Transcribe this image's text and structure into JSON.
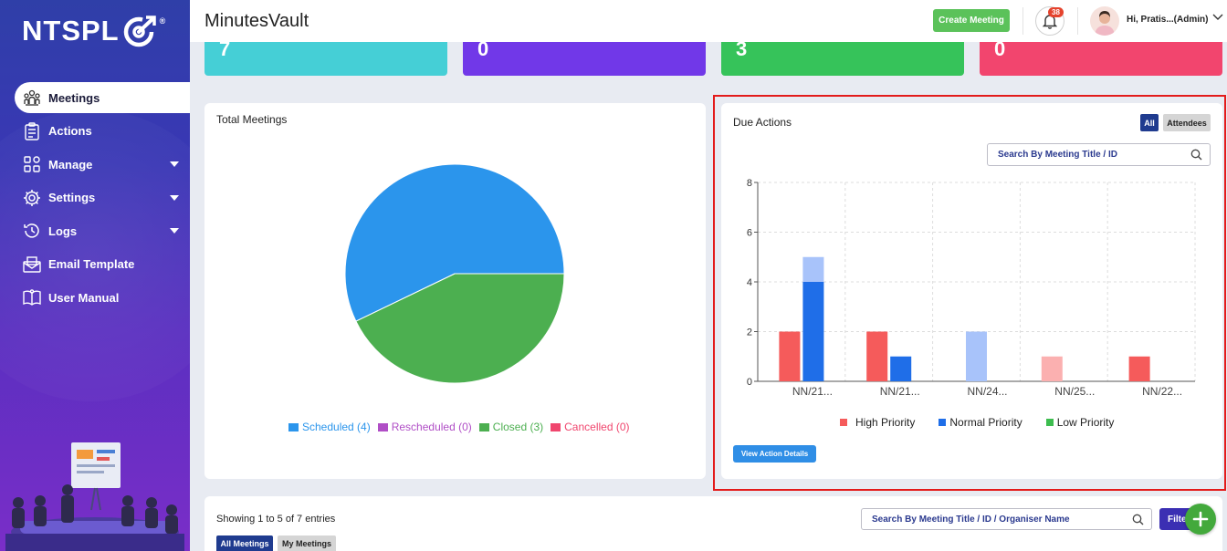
{
  "brand": {
    "logo_text": "NTSPL",
    "logo_mark": "®"
  },
  "sidebar": {
    "items": [
      {
        "label": "Meetings",
        "icon": "meetings-icon",
        "active": true
      },
      {
        "label": "Actions",
        "icon": "clipboard-icon"
      },
      {
        "label": "Manage",
        "icon": "grid-icon",
        "has_caret": true
      },
      {
        "label": "Settings",
        "icon": "gear-icon",
        "has_caret": true
      },
      {
        "label": "Logs",
        "icon": "history-icon",
        "has_caret": true
      },
      {
        "label": "Email Template",
        "icon": "envelope-icon"
      },
      {
        "label": "User Manual",
        "icon": "book-icon"
      }
    ]
  },
  "header": {
    "title": "MinutesVault",
    "create_button": "Create Meeting",
    "notification_count": "38",
    "user": "Hi, Pratis...(Admin)"
  },
  "stats": [
    {
      "value": "7",
      "color": "#45cfd6"
    },
    {
      "value": "0",
      "color": "#7138e8"
    },
    {
      "value": "3",
      "color": "#36c35a"
    },
    {
      "value": "0",
      "color": "#f2456e"
    }
  ],
  "total_meetings": {
    "title": "Total Meetings",
    "legend": [
      {
        "label": "Scheduled (4)",
        "color": "#2b95ec"
      },
      {
        "label": "Rescheduled (0)",
        "color": "#b04ec6"
      },
      {
        "label": "Closed (3)",
        "color": "#4caf50"
      },
      {
        "label": "Cancelled (0)",
        "color": "#f0466e"
      }
    ]
  },
  "due_actions": {
    "title": "Due Actions",
    "toggle_all": "All",
    "toggle_attendees": "Attendees",
    "search_placeholder": "Search By Meeting Title / ID",
    "view_button": "View Action Details",
    "legend": [
      {
        "label": "High Priority",
        "color": "#f55b5b"
      },
      {
        "label": "Normal Priority",
        "color": "#1f6ee8"
      },
      {
        "label": "Low Priority",
        "color": "#3dbd4f"
      }
    ]
  },
  "table_section": {
    "showing": "Showing 1 to 5 of 7 entries",
    "tab_all": "All Meetings",
    "tab_my": "My Meetings",
    "search_placeholder": "Search By Meeting Title / ID / Organiser Name",
    "filter_label": "Filter"
  },
  "chart_data": [
    {
      "type": "pie",
      "title": "Total Meetings",
      "categories": [
        "Scheduled",
        "Rescheduled",
        "Closed",
        "Cancelled"
      ],
      "values": [
        4,
        0,
        3,
        0
      ],
      "colors": [
        "#2b95ec",
        "#b04ec6",
        "#4caf50",
        "#f0466e"
      ],
      "legend_placement": "bottom"
    },
    {
      "type": "bar",
      "title": "Due Actions",
      "categories": [
        "NN/21...",
        "NN/21...",
        "NN/24...",
        "NN/25...",
        "NN/22..."
      ],
      "ylim": [
        0,
        8
      ],
      "yticks": [
        0,
        2,
        4,
        6,
        8
      ],
      "grid": true,
      "legend_placement": "bottom",
      "series": [
        {
          "name": "High Priority",
          "color": "#f55b5b",
          "values": [
            2,
            2,
            0,
            1,
            1
          ],
          "light": [
            false,
            false,
            false,
            true,
            false
          ]
        },
        {
          "name": "Normal Priority",
          "color": "#1f6ee8",
          "values": [
            4,
            1,
            2,
            0,
            0
          ],
          "light_extra": [
            1,
            0,
            0,
            0,
            0
          ],
          "light": [
            false,
            false,
            true,
            false,
            false
          ]
        }
      ]
    }
  ]
}
